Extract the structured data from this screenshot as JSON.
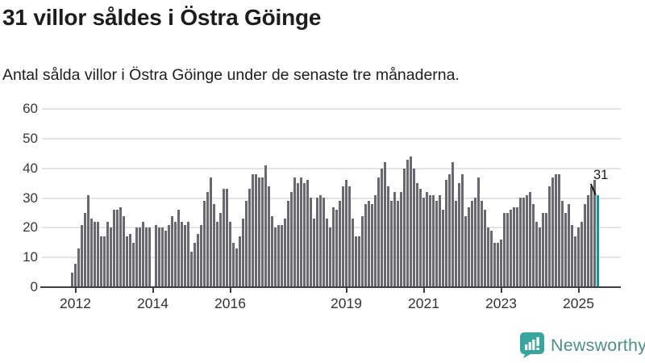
{
  "header": {
    "title": "31 villor såldes i Östra Göinge",
    "subtitle": "Antal sålda villor i Östra Göinge under de senaste tre månaderna."
  },
  "annotation": {
    "label": "31"
  },
  "branding": {
    "name": "Newsworthy",
    "icon": "newsworthy-chart-bubble-icon"
  },
  "colors": {
    "bar": "#69686F",
    "highlight": "#0A9E96",
    "grid": "#E4E4E4",
    "axis": "#3E3E46",
    "text": "#1D1D1B",
    "brand_text": "#4E8F8C",
    "brand_icon": "#38A59F"
  },
  "chart_data": {
    "type": "bar",
    "title": "31 villor såldes i Östra Göinge",
    "subtitle": "Antal sålda villor i Östra Göinge under de senaste tre månaderna.",
    "xlabel": "",
    "ylabel": "",
    "ylim": [
      0,
      60
    ],
    "yticks": [
      "0",
      "10",
      "20",
      "30",
      "40",
      "50",
      "60"
    ],
    "grid": true,
    "legend": false,
    "period": "monthly rolling 3-month totals, 2012-2025",
    "xticks": [
      {
        "label": "2012",
        "index": 1
      },
      {
        "label": "2014",
        "index": 25
      },
      {
        "label": "2016",
        "index": 49
      },
      {
        "label": "2019",
        "index": 85
      },
      {
        "label": "2021",
        "index": 109
      },
      {
        "label": "2023",
        "index": 133
      },
      {
        "label": "2025",
        "index": 157
      }
    ],
    "values": [
      5,
      8,
      13,
      21,
      25,
      31,
      23,
      22,
      22,
      17,
      17,
      22,
      20,
      26,
      26,
      27,
      24,
      17,
      18,
      15,
      20,
      20,
      22,
      20,
      20,
      0,
      21,
      20,
      20,
      19,
      21,
      24,
      22,
      26,
      22,
      21,
      22,
      12,
      15,
      18,
      21,
      29,
      32,
      37,
      28,
      22,
      25,
      33,
      33,
      22,
      15,
      13,
      17,
      23,
      29,
      33,
      38,
      38,
      37,
      37,
      41,
      34,
      24,
      20,
      21,
      21,
      23,
      29,
      32,
      37,
      35,
      37,
      35,
      36,
      30,
      23,
      30,
      31,
      30,
      23,
      20,
      27,
      26,
      29,
      34,
      36,
      34,
      23,
      17,
      17,
      24,
      28,
      29,
      28,
      31,
      37,
      40,
      42,
      34,
      29,
      32,
      29,
      32,
      40,
      43,
      44,
      40,
      35,
      33,
      30,
      32,
      31,
      31,
      29,
      31,
      26,
      36,
      38,
      42,
      29,
      35,
      38,
      24,
      27,
      29,
      30,
      37,
      29,
      26,
      20,
      19,
      15,
      15,
      16,
      25,
      25,
      26,
      27,
      27,
      30,
      30,
      31,
      32,
      28,
      22,
      20,
      25,
      25,
      34,
      37,
      38,
      38,
      29,
      25,
      28,
      21,
      17,
      20,
      22,
      28,
      31,
      34,
      36,
      31
    ],
    "highlight_last": true,
    "highlight_value": 31
  }
}
